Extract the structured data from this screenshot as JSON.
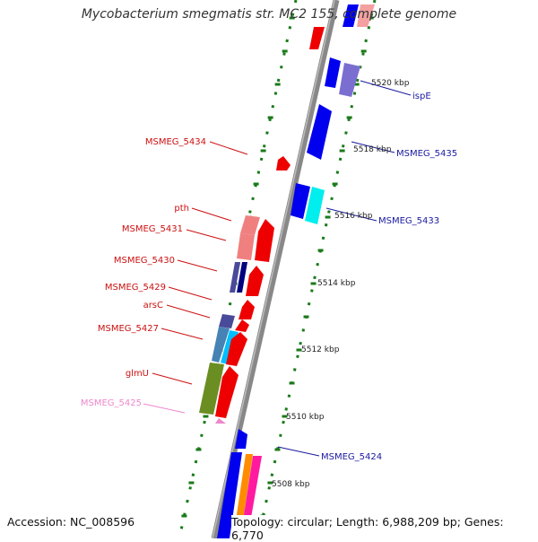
{
  "title": "Mycobacterium smegmatis str. MC2 155, complete genome",
  "footer": {
    "accession": "Accession: NC_008596",
    "topology": "Topology: circular; Length: 6,988,209 bp; Genes: 6,770"
  },
  "scale_unit": "kbp",
  "scale_ticks": [
    {
      "label": "5520 kbp",
      "kbp": 5520
    },
    {
      "label": "5518 kbp",
      "kbp": 5518
    },
    {
      "label": "5516 kbp",
      "kbp": 5516
    },
    {
      "label": "5514 kbp",
      "kbp": 5514
    },
    {
      "label": "5512 kbp",
      "kbp": 5512
    },
    {
      "label": "5510 kbp",
      "kbp": 5510
    },
    {
      "label": "5508 kbp",
      "kbp": 5508
    }
  ],
  "gene_labels": [
    {
      "name": "ispE",
      "strand": "+",
      "color": "#1a1aa0"
    },
    {
      "name": "MSMEG_5435",
      "strand": "+",
      "color": "#1a1aa0"
    },
    {
      "name": "MSMEG_5433",
      "strand": "+",
      "color": "#1a1aa0"
    },
    {
      "name": "MSMEG_5424",
      "strand": "+",
      "color": "#1a1aa0"
    },
    {
      "name": "MSMEG_5434",
      "strand": "-",
      "color": "#cc1111"
    },
    {
      "name": "pth",
      "strand": "-",
      "color": "#cc1111"
    },
    {
      "name": "MSMEG_5431",
      "strand": "-",
      "color": "#cc1111"
    },
    {
      "name": "MSMEG_5430",
      "strand": "-",
      "color": "#cc1111"
    },
    {
      "name": "MSMEG_5429",
      "strand": "-",
      "color": "#cc1111"
    },
    {
      "name": "arsC",
      "strand": "-",
      "color": "#cc1111"
    },
    {
      "name": "MSMEG_5427",
      "strand": "-",
      "color": "#cc1111"
    },
    {
      "name": "glmU",
      "strand": "-",
      "color": "#cc1111"
    },
    {
      "name": "MSMEG_5425",
      "strand": "-",
      "color": "#ee88cc"
    }
  ],
  "colors": {
    "backbone": "#888888",
    "tick": "#1a7a1a",
    "forward": "#0000ee",
    "reverse": "#ee0000"
  }
}
